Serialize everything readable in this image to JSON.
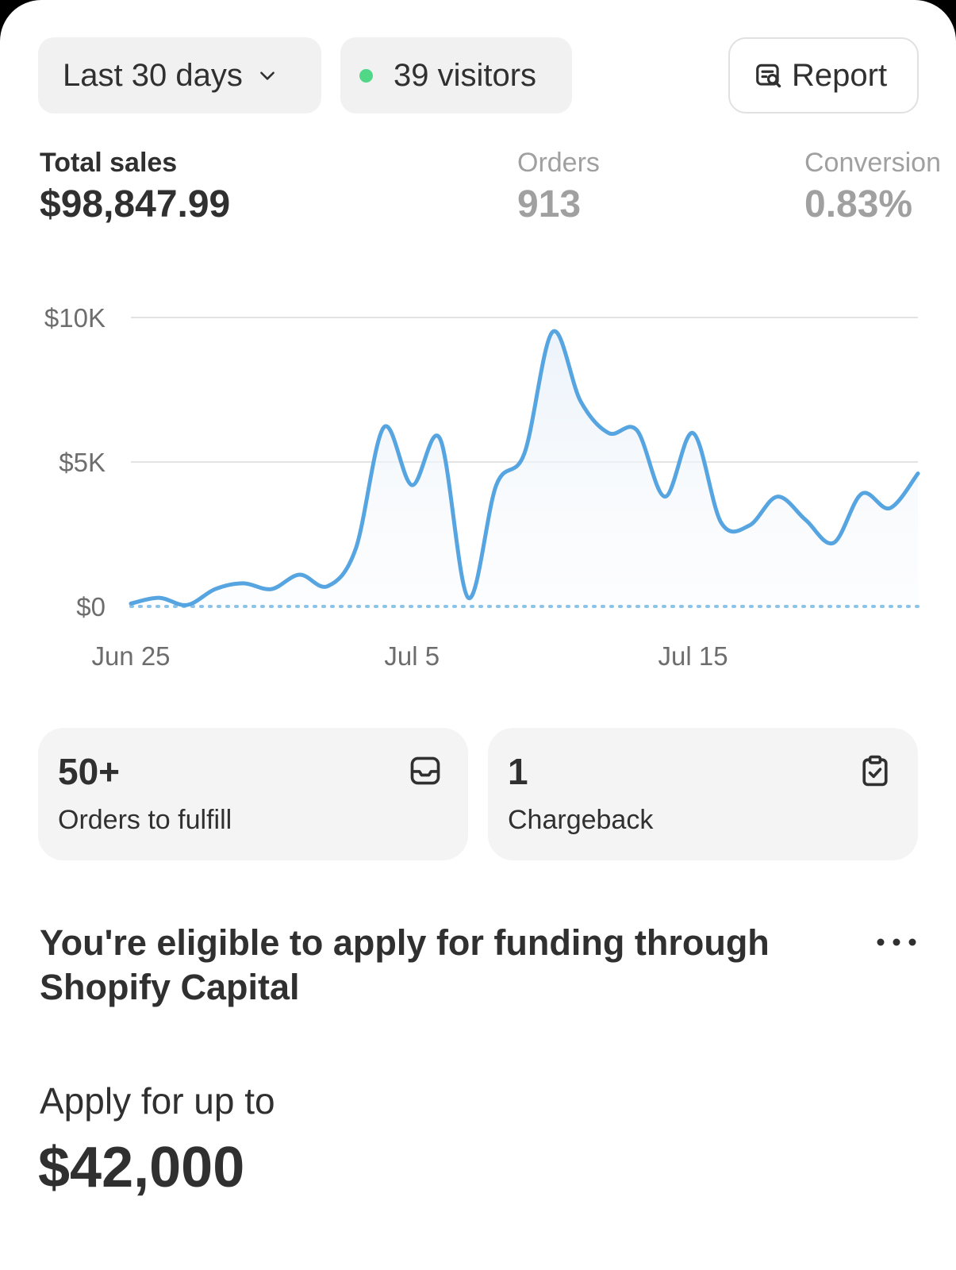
{
  "filters": {
    "date_range": "Last 30 days",
    "visitors": "39 visitors",
    "visitors_status_color": "#50d887",
    "report_label": "Report"
  },
  "metrics": {
    "total_sales": {
      "label": "Total sales",
      "value": "$98,847.99"
    },
    "orders": {
      "label": "Orders",
      "value": "913"
    },
    "conversion": {
      "label": "Conversion",
      "value": "0.83%"
    }
  },
  "chart_data": {
    "type": "line",
    "y_ticks": [
      "$10K",
      "$5K",
      "$0"
    ],
    "x_ticks": [
      "Jun 25",
      "Jul 5",
      "Jul 15"
    ],
    "ylim": [
      0,
      10000
    ],
    "line_color": "#56a5e1",
    "series": [
      {
        "values": [
          100,
          300,
          50,
          600,
          800,
          600,
          1100,
          700,
          2000,
          6200,
          4200,
          5800,
          300,
          4200,
          5300,
          9500,
          7100,
          6000,
          6100,
          3800,
          6000,
          2900,
          2800,
          3800,
          3000,
          2200,
          3900,
          3400,
          4600
        ]
      }
    ],
    "baseline_values": [
      0
    ]
  },
  "tiles": [
    {
      "value": "50+",
      "label": "Orders to fulfill",
      "icon": "inbox-icon"
    },
    {
      "value": "1",
      "label": "Chargeback",
      "icon": "clipboard-check-icon"
    }
  ],
  "funding": {
    "title": "You're eligible to apply for funding through Shopify Capital",
    "apply_label": "Apply for up to",
    "apply_amount": "$42,000"
  }
}
